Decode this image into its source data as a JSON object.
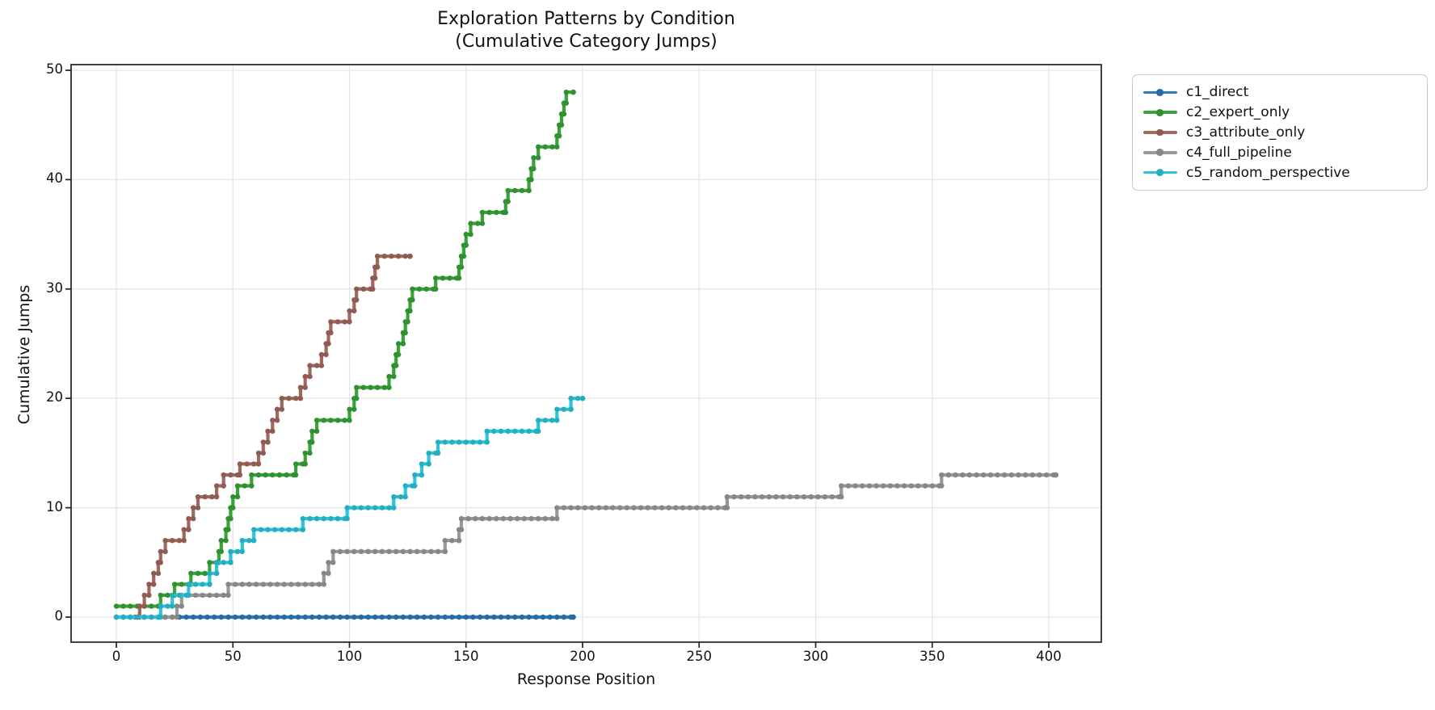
{
  "figure": {
    "title_line1": "Exploration Patterns by Condition",
    "title_line2": "(Cumulative Category Jumps)"
  },
  "chart_data": {
    "type": "line",
    "step_mode": "post",
    "title": "Exploration Patterns by Condition (Cumulative Category Jumps)",
    "xlabel": "Response Position",
    "ylabel": "Cumulative Jumps",
    "xlim": [
      -19,
      422
    ],
    "ylim": [
      -2.3,
      50.5
    ],
    "xticks": [
      0,
      50,
      100,
      150,
      200,
      250,
      300,
      350,
      400
    ],
    "yticks": [
      0,
      10,
      20,
      30,
      40,
      50
    ],
    "grid": true,
    "grid_color": "#e5e5e5",
    "spine_color": "#222222",
    "legend_position": "outside-top-right",
    "series": [
      {
        "name": "c1_direct",
        "color": "#2e79b8",
        "points": [
          [
            0,
            0
          ],
          [
            196,
            0
          ]
        ]
      },
      {
        "name": "c2_expert_only",
        "color": "#38a438",
        "points": [
          [
            0,
            1
          ],
          [
            19,
            2
          ],
          [
            25,
            3
          ],
          [
            32,
            4
          ],
          [
            40,
            5
          ],
          [
            44,
            6
          ],
          [
            45,
            7
          ],
          [
            47,
            8
          ],
          [
            48,
            9
          ],
          [
            49,
            10
          ],
          [
            50,
            11
          ],
          [
            52,
            12
          ],
          [
            58,
            13
          ],
          [
            77,
            14
          ],
          [
            81,
            15
          ],
          [
            83,
            16
          ],
          [
            84,
            17
          ],
          [
            86,
            18
          ],
          [
            100,
            19
          ],
          [
            102,
            20
          ],
          [
            103,
            21
          ],
          [
            117,
            22
          ],
          [
            119,
            23
          ],
          [
            120,
            24
          ],
          [
            121,
            25
          ],
          [
            123,
            26
          ],
          [
            124,
            27
          ],
          [
            125,
            28
          ],
          [
            126,
            29
          ],
          [
            127,
            30
          ],
          [
            137,
            31
          ],
          [
            147,
            32
          ],
          [
            148,
            33
          ],
          [
            149,
            34
          ],
          [
            150,
            35
          ],
          [
            152,
            36
          ],
          [
            157,
            37
          ],
          [
            167,
            38
          ],
          [
            168,
            39
          ],
          [
            177,
            40
          ],
          [
            178,
            41
          ],
          [
            179,
            42
          ],
          [
            181,
            43
          ],
          [
            189,
            44
          ],
          [
            190,
            45
          ],
          [
            191,
            46
          ],
          [
            192,
            47
          ],
          [
            193,
            48
          ],
          [
            196,
            48
          ]
        ]
      },
      {
        "name": "c3_attribute_only",
        "color": "#a2685e",
        "points": [
          [
            8,
            0
          ],
          [
            10,
            1
          ],
          [
            12,
            2
          ],
          [
            14,
            3
          ],
          [
            16,
            4
          ],
          [
            18,
            5
          ],
          [
            19,
            6
          ],
          [
            21,
            7
          ],
          [
            29,
            8
          ],
          [
            31,
            9
          ],
          [
            33,
            10
          ],
          [
            35,
            11
          ],
          [
            43,
            12
          ],
          [
            46,
            13
          ],
          [
            53,
            14
          ],
          [
            61,
            15
          ],
          [
            63,
            16
          ],
          [
            65,
            17
          ],
          [
            67,
            18
          ],
          [
            69,
            19
          ],
          [
            71,
            20
          ],
          [
            79,
            21
          ],
          [
            81,
            22
          ],
          [
            83,
            23
          ],
          [
            88,
            24
          ],
          [
            90,
            25
          ],
          [
            91,
            26
          ],
          [
            92,
            27
          ],
          [
            100,
            28
          ],
          [
            102,
            29
          ],
          [
            103,
            30
          ],
          [
            110,
            31
          ],
          [
            111,
            32
          ],
          [
            112,
            33
          ],
          [
            126,
            33
          ]
        ]
      },
      {
        "name": "c4_full_pipeline",
        "color": "#999999",
        "points": [
          [
            0,
            0
          ],
          [
            26,
            1
          ],
          [
            28,
            2
          ],
          [
            48,
            3
          ],
          [
            89,
            4
          ],
          [
            91,
            5
          ],
          [
            93,
            6
          ],
          [
            141,
            7
          ],
          [
            147,
            8
          ],
          [
            148,
            9
          ],
          [
            189,
            10
          ],
          [
            262,
            11
          ],
          [
            311,
            12
          ],
          [
            354,
            13
          ],
          [
            403,
            13
          ]
        ]
      },
      {
        "name": "c5_random_perspective",
        "color": "#2cc5da",
        "points": [
          [
            0,
            0
          ],
          [
            19,
            1
          ],
          [
            24,
            2
          ],
          [
            31,
            3
          ],
          [
            40,
            4
          ],
          [
            43,
            5
          ],
          [
            49,
            6
          ],
          [
            54,
            7
          ],
          [
            59,
            8
          ],
          [
            80,
            9
          ],
          [
            99,
            10
          ],
          [
            119,
            11
          ],
          [
            124,
            12
          ],
          [
            128,
            13
          ],
          [
            131,
            14
          ],
          [
            134,
            15
          ],
          [
            138,
            16
          ],
          [
            159,
            17
          ],
          [
            181,
            18
          ],
          [
            189,
            19
          ],
          [
            195,
            20
          ],
          [
            200,
            20
          ]
        ]
      }
    ]
  }
}
